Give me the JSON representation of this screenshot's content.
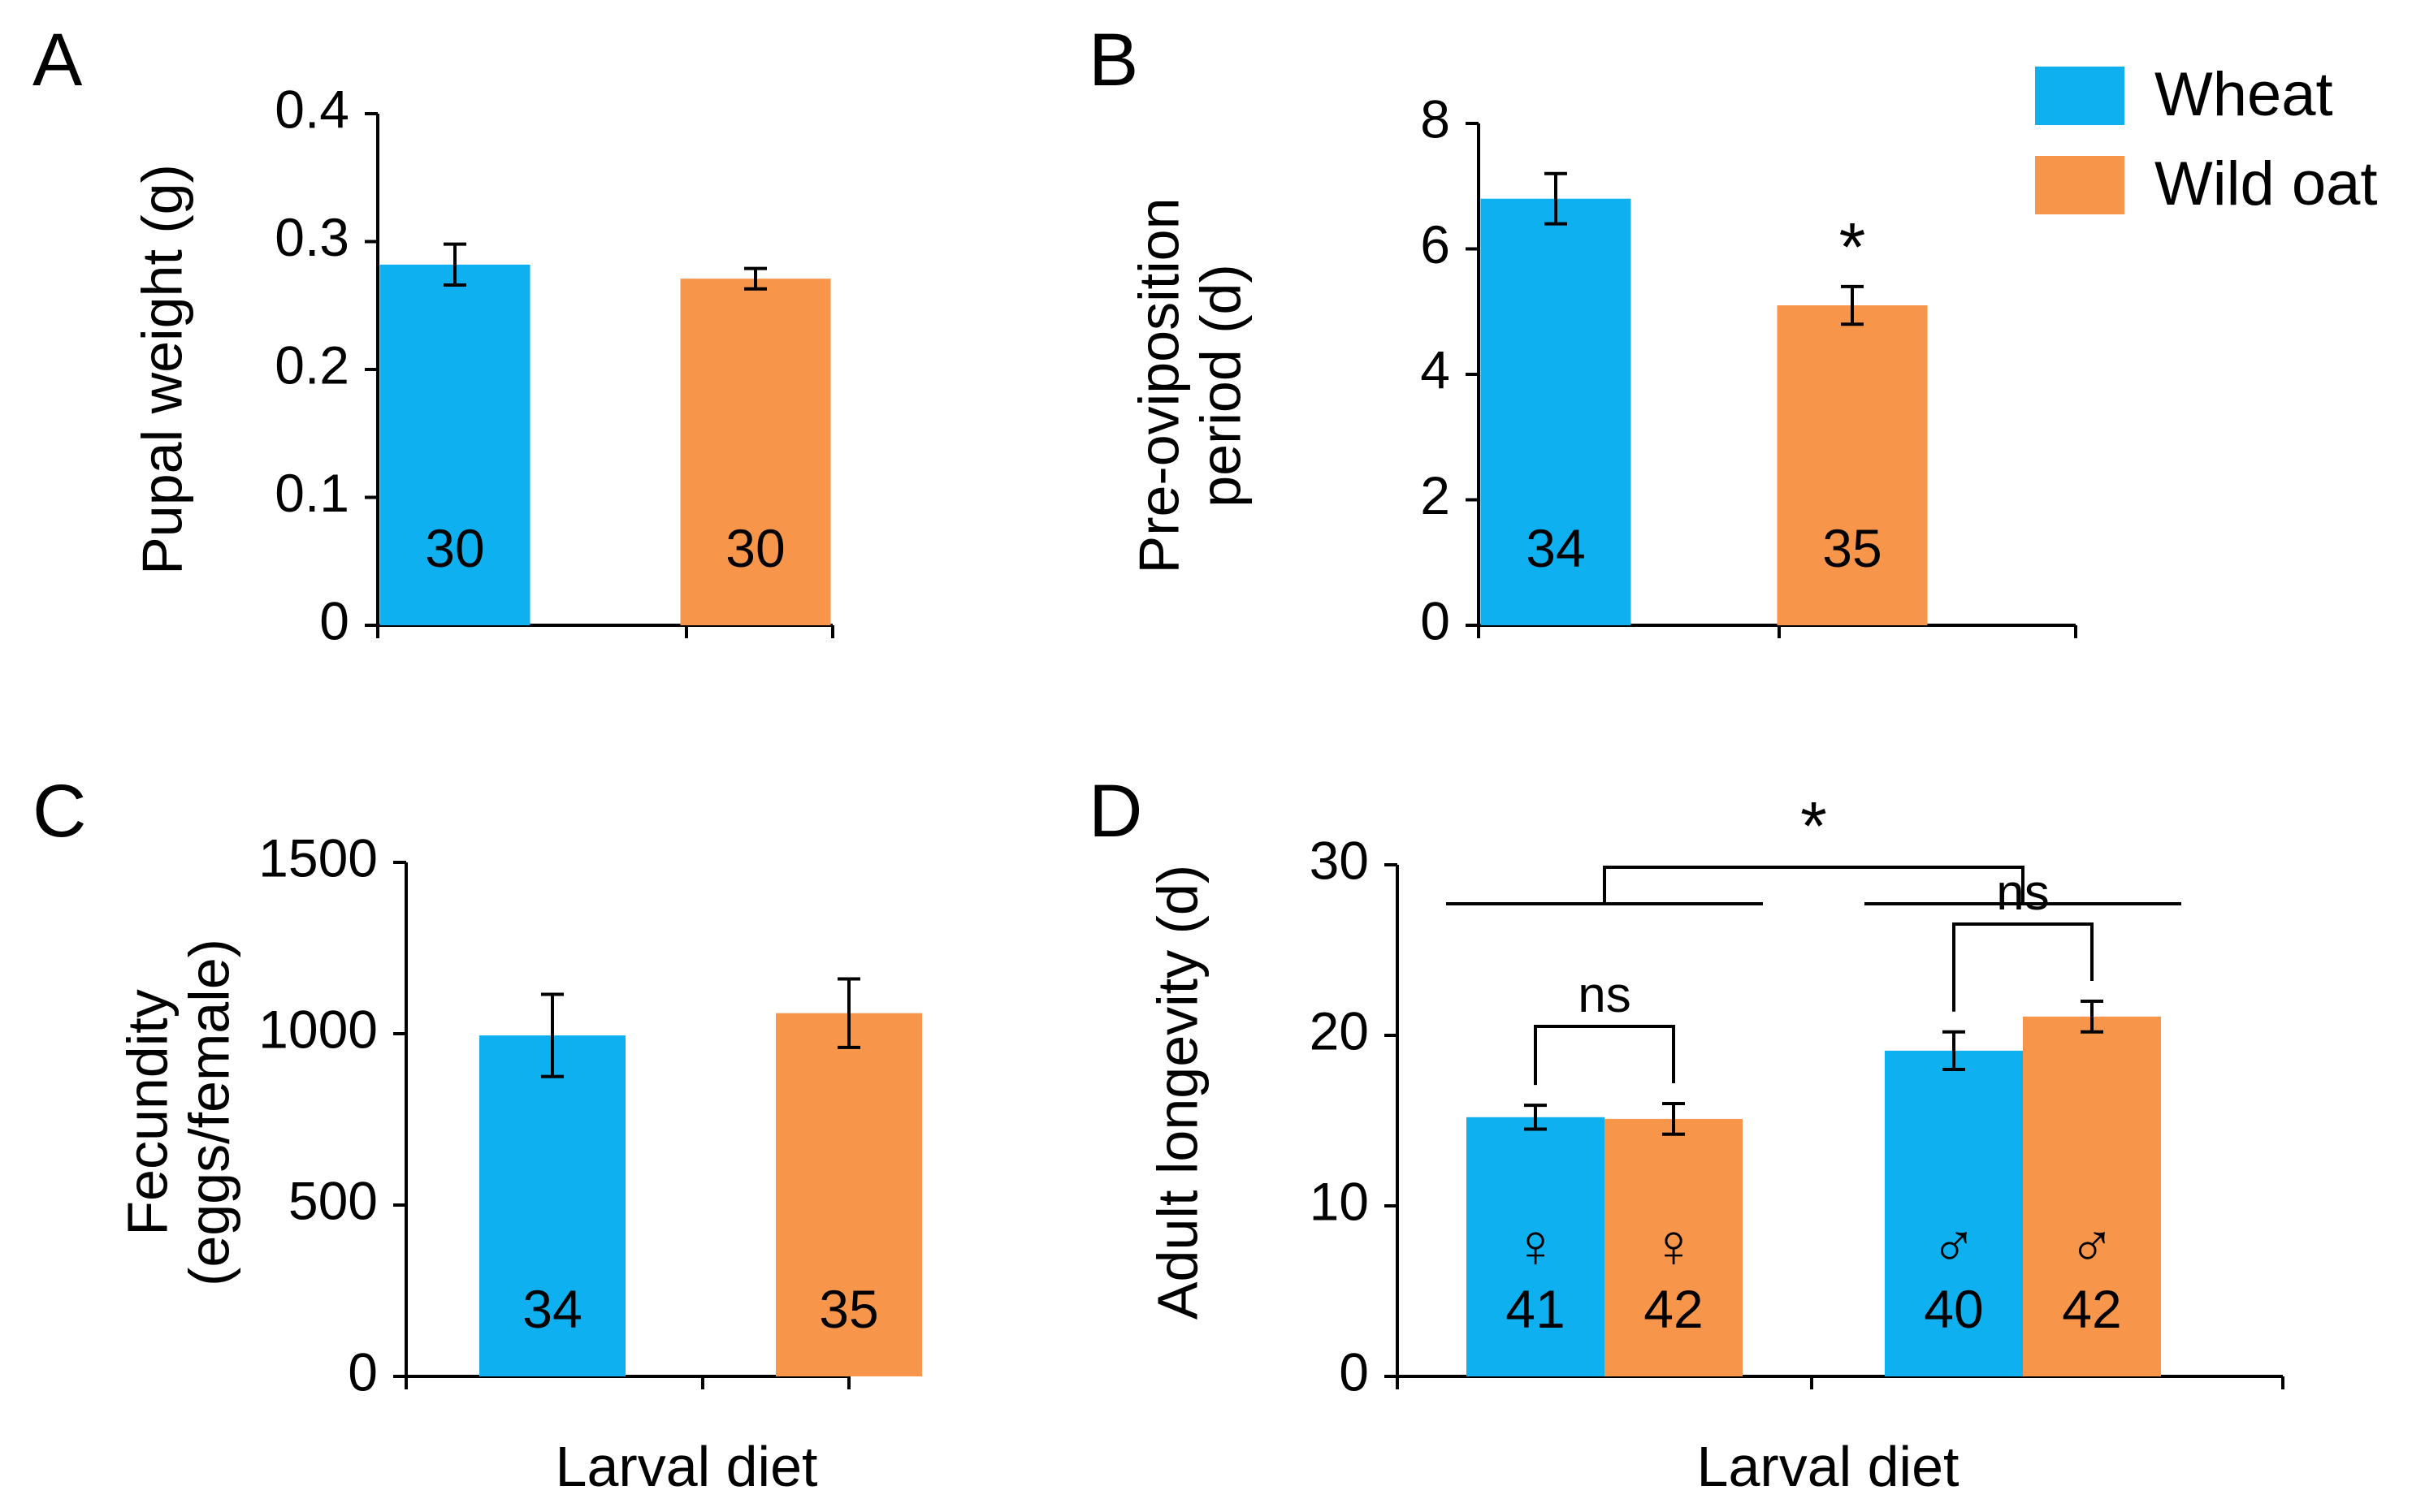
{
  "colors": {
    "wheat": "#0fb0ef",
    "wild_oat": "#f7964a"
  },
  "legend": [
    {
      "label": "Wheat",
      "color_key": "wheat"
    },
    {
      "label": "Wild oat",
      "color_key": "wild_oat"
    }
  ],
  "chart_data": [
    {
      "panel": "A",
      "type": "bar",
      "ylabel": [
        "Pupal weight (g)"
      ],
      "ylim": [
        0,
        0.4
      ],
      "yticks": [
        "0",
        "0.1",
        "0.2",
        "0.3",
        "0.4"
      ],
      "xlabel": "",
      "bars": [
        {
          "series": "Wheat",
          "value": 0.282,
          "error": 0.016,
          "n": "30"
        },
        {
          "series": "Wild oat",
          "value": 0.271,
          "error": 0.008,
          "n": "30"
        }
      ],
      "annotations": []
    },
    {
      "panel": "B",
      "type": "bar",
      "ylabel": [
        "Pre-oviposition",
        "period (d)"
      ],
      "ylim": [
        0,
        8
      ],
      "yticks": [
        "0",
        "2",
        "4",
        "6",
        "8"
      ],
      "xlabel": "",
      "bars": [
        {
          "series": "Wheat",
          "value": 6.8,
          "error": 0.4,
          "n": "34"
        },
        {
          "series": "Wild oat",
          "value": 5.1,
          "error": 0.3,
          "n": "35",
          "sig": "*"
        }
      ],
      "annotations": []
    },
    {
      "panel": "C",
      "type": "bar",
      "ylabel": [
        "Fecundity",
        "(eggs/female)"
      ],
      "ylim": [
        0,
        1500
      ],
      "yticks": [
        "0",
        "500",
        "1000",
        "1500"
      ],
      "xlabel": "Larval diet",
      "bars": [
        {
          "series": "Wheat",
          "value": 995,
          "error": 120,
          "n": "34"
        },
        {
          "series": "Wild oat",
          "value": 1060,
          "error": 100,
          "n": "35"
        }
      ],
      "annotations": []
    },
    {
      "panel": "D",
      "type": "bar",
      "ylabel": [
        "Adult longevity (d)"
      ],
      "ylim": [
        0,
        30
      ],
      "yticks": [
        "0",
        "10",
        "20",
        "30"
      ],
      "xlabel": "Larval diet",
      "bars": [
        {
          "series": "Wheat",
          "value": 15.2,
          "error": 0.7,
          "n": "41",
          "sex": "♀"
        },
        {
          "series": "Wild oat",
          "value": 15.1,
          "error": 0.9,
          "n": "42",
          "sex": "♀"
        },
        {
          "series": "Wheat",
          "value": 19.1,
          "error": 1.1,
          "n": "40",
          "sex": "♂"
        },
        {
          "series": "Wild oat",
          "value": 21.1,
          "error": 0.9,
          "n": "42",
          "sex": "♂"
        }
      ],
      "annotations": [
        {
          "kind": "pair",
          "label": "ns",
          "from": 0,
          "to": 1
        },
        {
          "kind": "pair",
          "label": "ns",
          "from": 2,
          "to": 3
        },
        {
          "kind": "group",
          "label": "*",
          "groups": [
            [
              0,
              1
            ],
            [
              2,
              3
            ]
          ]
        }
      ]
    }
  ]
}
